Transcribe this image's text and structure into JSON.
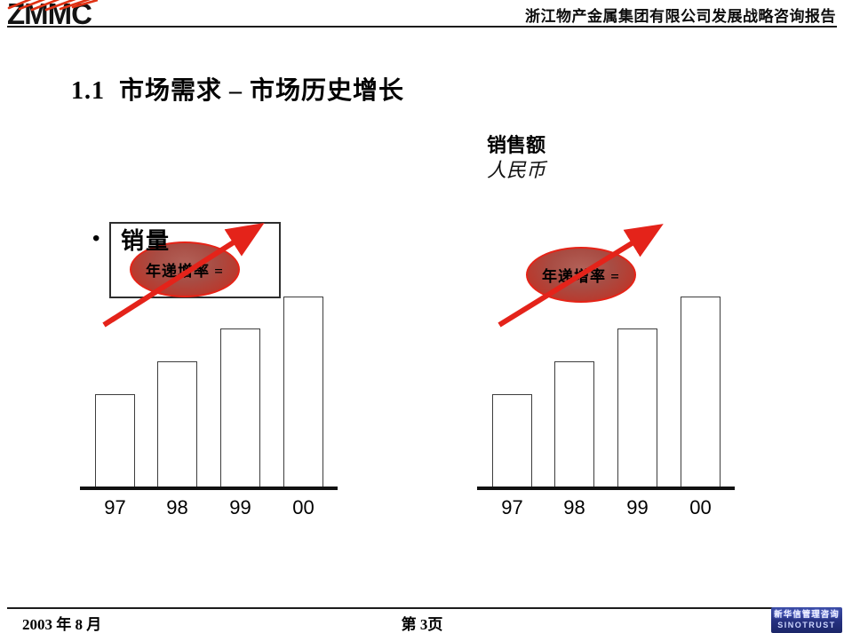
{
  "header": {
    "logo_text": "ZMMC",
    "report_title": "浙江物产金属集团有限公司发展战略咨询报告"
  },
  "slide": {
    "title": "1.1  市场需求 – 市场历史增长"
  },
  "left_chart": {
    "legend_bullet": "•",
    "legend_label": "销量",
    "growth_label": "年递增率 ="
  },
  "right_chart": {
    "unit_title": "销售额",
    "unit_subtitle": "人民币",
    "growth_label": "年递增率 ="
  },
  "chart_data": [
    {
      "type": "bar",
      "title": "销量",
      "categories": [
        "97",
        "98",
        "99",
        "00"
      ],
      "values": [
        107,
        144,
        181,
        217
      ],
      "xlabel": "",
      "ylabel": "",
      "legend_position": "top-left box",
      "grid": false,
      "annotation": "年递增率 =",
      "trend": "increasing (red arrow up-right)"
    },
    {
      "type": "bar",
      "title": "销售额",
      "unit": "人民币",
      "categories": [
        "97",
        "98",
        "99",
        "00"
      ],
      "values": [
        107,
        144,
        181,
        217
      ],
      "xlabel": "",
      "ylabel": "",
      "grid": false,
      "annotation": "年递增率 =",
      "trend": "increasing (red arrow up-right)"
    }
  ],
  "footer": {
    "date": "2003 年 8 月",
    "page": "第 3页",
    "logo_line1": "新华信管理咨询",
    "logo_line2": "SINOTRUST"
  },
  "colors": {
    "arrow_red": "#e4231a",
    "ellipse_border": "#e62317",
    "ellipse_fill_center": "#a84c43",
    "ellipse_fill_edge": "#d52f22",
    "logo_ray_red": "#e03214",
    "footer_logo_blue": "#25307f",
    "bar_fill": "#ffffff",
    "line_black": "#111111"
  }
}
